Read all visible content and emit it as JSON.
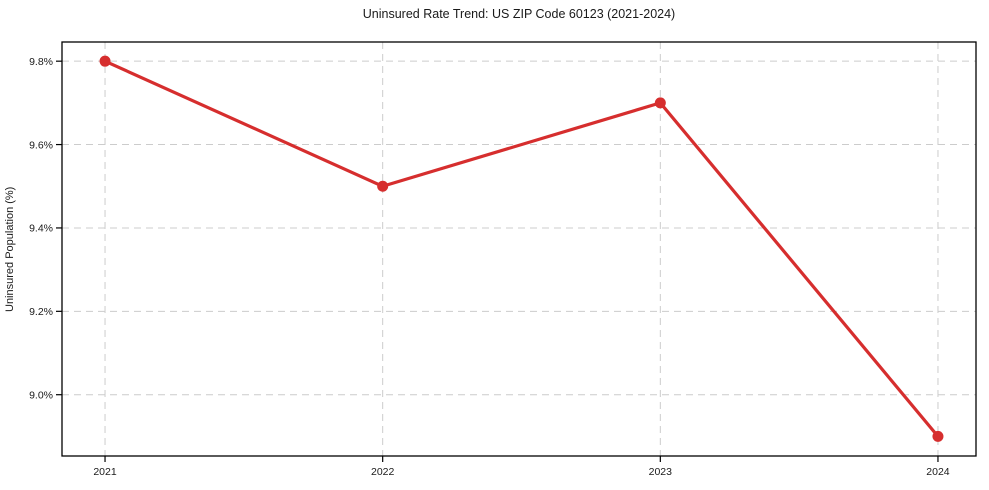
{
  "chart_data": {
    "type": "line",
    "title": "Uninsured Rate Trend: US ZIP Code 60123 (2021-2024)",
    "xlabel": "",
    "ylabel": "Uninsured Population (%)",
    "categories": [
      "2021",
      "2022",
      "2023",
      "2024"
    ],
    "x": [
      2021,
      2022,
      2023,
      2024
    ],
    "series": [
      {
        "name": "Uninsured rate",
        "values": [
          9.8,
          9.5,
          9.7,
          8.9
        ]
      }
    ],
    "yticks": [
      9.0,
      9.2,
      9.4,
      9.6,
      9.8
    ],
    "ytick_labels": [
      "9.0%",
      "9.2%",
      "9.4%",
      "9.6%",
      "9.8%"
    ],
    "ylim": [
      8.853,
      9.846
    ],
    "xlim": [
      2020.845,
      2024.137
    ],
    "grid": true,
    "grid_style": "dashed",
    "legend": "none",
    "marker": "circle",
    "colors": {
      "line": "#d62e2e",
      "marker": "#d62e2e",
      "grid": "#cccccc",
      "axis": "#000000",
      "text": "#1a1a1a",
      "background": "#ffffff"
    }
  }
}
